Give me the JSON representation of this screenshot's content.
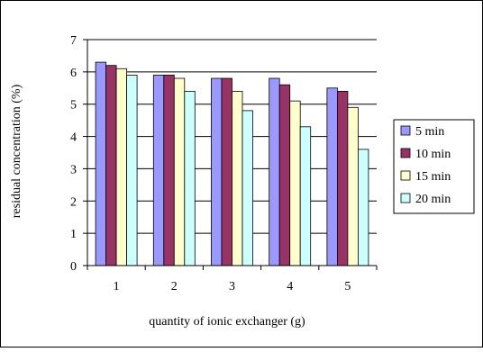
{
  "chart_data": {
    "type": "bar",
    "title": "",
    "xlabel": "quantity of ionic exchanger (g)",
    "ylabel": "residual concentration (%)",
    "ylim": [
      0,
      7
    ],
    "yticks": [
      "0",
      "1",
      "2",
      "3",
      "4",
      "5",
      "6",
      "7"
    ],
    "categories": [
      "1",
      "2",
      "3",
      "4",
      "5"
    ],
    "grid": true,
    "legend_position": "right",
    "series": [
      {
        "name": "5 min",
        "color": "#9999ff",
        "values": [
          6.3,
          5.9,
          5.8,
          5.8,
          5.5
        ]
      },
      {
        "name": "10 min",
        "color": "#993366",
        "values": [
          6.2,
          5.9,
          5.8,
          5.6,
          5.4
        ]
      },
      {
        "name": "15 min",
        "color": "#ffffcc",
        "values": [
          6.1,
          5.8,
          5.4,
          5.1,
          4.9
        ]
      },
      {
        "name": "20 min",
        "color": "#ccffff",
        "values": [
          5.9,
          5.4,
          4.8,
          4.3,
          3.6
        ]
      }
    ]
  }
}
